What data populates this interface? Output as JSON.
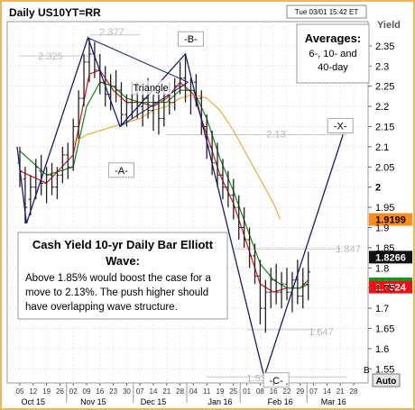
{
  "chart_data": {
    "type": "candlestick",
    "title": "Daily US10YT=RR",
    "timestamp": "Tue 03/01 15:42 ET",
    "ylabel": "Yield",
    "ylim": [
      1.515,
      2.41
    ],
    "yticks": [
      2.35,
      2.3,
      2.25,
      2.2,
      2.15,
      2.1,
      2.05,
      2,
      1.95,
      1.9,
      1.85,
      1.8,
      1.75,
      1.7,
      1.65,
      1.6,
      1.55
    ],
    "ytick_labels": [
      "2.35",
      "2.3",
      "2.25",
      "2.2",
      "2.15",
      "2.1",
      "2.05",
      "2",
      "1.95",
      "1.9",
      "1.85",
      "1.8",
      "1.75",
      "1.7",
      "1.65",
      "1.6",
      "1.55"
    ],
    "x_tick_labels": [
      "05",
      "12",
      "19",
      "26",
      "02",
      "09",
      "16",
      "23",
      "30",
      "07",
      "14",
      "21",
      "28",
      "04",
      "11",
      "19",
      "25",
      "01",
      "08",
      "16",
      "22",
      "29",
      "07",
      "14",
      "21",
      "28"
    ],
    "month_labels": [
      {
        "label": "Oct 15",
        "index": 1
      },
      {
        "label": "Nov 15",
        "index": 5.5
      },
      {
        "label": "Dec 15",
        "index": 10
      },
      {
        "label": "Jan 16",
        "index": 15
      },
      {
        "label": "Feb 16",
        "index": 19.5
      },
      {
        "label": "Mar 16",
        "index": 23.5
      }
    ],
    "candles": [
      {
        "x": 0,
        "o": 2.06,
        "h": 2.1,
        "l": 2.0,
        "c": 2.04
      },
      {
        "x": 0.4,
        "o": 2.02,
        "h": 2.05,
        "l": 1.91,
        "c": 1.95
      },
      {
        "x": 0.8,
        "o": 1.97,
        "h": 2.03,
        "l": 1.93,
        "c": 2.0
      },
      {
        "x": 1.2,
        "o": 2.0,
        "h": 2.07,
        "l": 1.97,
        "c": 2.05
      },
      {
        "x": 1.6,
        "o": 2.04,
        "h": 2.08,
        "l": 1.98,
        "c": 2.01
      },
      {
        "x": 2.0,
        "o": 2.01,
        "h": 2.05,
        "l": 1.96,
        "c": 2.03
      },
      {
        "x": 2.4,
        "o": 2.03,
        "h": 2.06,
        "l": 1.98,
        "c": 2.0
      },
      {
        "x": 2.8,
        "o": 2.0,
        "h": 2.05,
        "l": 1.97,
        "c": 2.03
      },
      {
        "x": 3.2,
        "o": 2.03,
        "h": 2.1,
        "l": 2.01,
        "c": 2.08
      },
      {
        "x": 3.6,
        "o": 2.08,
        "h": 2.11,
        "l": 2.02,
        "c": 2.05
      },
      {
        "x": 4.0,
        "o": 2.05,
        "h": 2.17,
        "l": 2.04,
        "c": 2.15
      },
      {
        "x": 4.4,
        "o": 2.15,
        "h": 2.24,
        "l": 2.12,
        "c": 2.22
      },
      {
        "x": 4.8,
        "o": 2.22,
        "h": 2.33,
        "l": 2.2,
        "c": 2.31
      },
      {
        "x": 5.2,
        "o": 2.31,
        "h": 2.37,
        "l": 2.26,
        "c": 2.33
      },
      {
        "x": 5.6,
        "o": 2.33,
        "h": 2.36,
        "l": 2.27,
        "c": 2.29
      },
      {
        "x": 6.0,
        "o": 2.29,
        "h": 2.33,
        "l": 2.23,
        "c": 2.26
      },
      {
        "x": 6.4,
        "o": 2.26,
        "h": 2.3,
        "l": 2.2,
        "c": 2.23
      },
      {
        "x": 6.8,
        "o": 2.23,
        "h": 2.28,
        "l": 2.19,
        "c": 2.25
      },
      {
        "x": 7.2,
        "o": 2.25,
        "h": 2.29,
        "l": 2.21,
        "c": 2.24
      },
      {
        "x": 7.6,
        "o": 2.24,
        "h": 2.26,
        "l": 2.15,
        "c": 2.18
      },
      {
        "x": 8.0,
        "o": 2.18,
        "h": 2.23,
        "l": 2.15,
        "c": 2.21
      },
      {
        "x": 8.4,
        "o": 2.21,
        "h": 2.26,
        "l": 2.17,
        "c": 2.23
      },
      {
        "x": 8.8,
        "o": 2.23,
        "h": 2.26,
        "l": 2.17,
        "c": 2.2
      },
      {
        "x": 9.2,
        "o": 2.2,
        "h": 2.24,
        "l": 2.15,
        "c": 2.22
      },
      {
        "x": 9.6,
        "o": 2.22,
        "h": 2.27,
        "l": 2.17,
        "c": 2.19
      },
      {
        "x": 10.0,
        "o": 2.19,
        "h": 2.23,
        "l": 2.14,
        "c": 2.21
      },
      {
        "x": 10.4,
        "o": 2.21,
        "h": 2.24,
        "l": 2.13,
        "c": 2.17
      },
      {
        "x": 10.8,
        "o": 2.17,
        "h": 2.25,
        "l": 2.15,
        "c": 2.23
      },
      {
        "x": 11.2,
        "o": 2.23,
        "h": 2.26,
        "l": 2.18,
        "c": 2.21
      },
      {
        "x": 11.6,
        "o": 2.21,
        "h": 2.27,
        "l": 2.19,
        "c": 2.25
      },
      {
        "x": 12.0,
        "o": 2.25,
        "h": 2.31,
        "l": 2.23,
        "c": 2.27
      },
      {
        "x": 12.4,
        "o": 2.27,
        "h": 2.33,
        "l": 2.21,
        "c": 2.24
      },
      {
        "x": 12.8,
        "o": 2.24,
        "h": 2.27,
        "l": 2.18,
        "c": 2.26
      },
      {
        "x": 13.2,
        "o": 2.26,
        "h": 2.28,
        "l": 2.2,
        "c": 2.22
      },
      {
        "x": 13.6,
        "o": 2.22,
        "h": 2.24,
        "l": 2.13,
        "c": 2.15
      },
      {
        "x": 14.0,
        "o": 2.15,
        "h": 2.18,
        "l": 2.07,
        "c": 2.1
      },
      {
        "x": 14.4,
        "o": 2.1,
        "h": 2.14,
        "l": 2.03,
        "c": 2.06
      },
      {
        "x": 14.8,
        "o": 2.06,
        "h": 2.11,
        "l": 2.0,
        "c": 2.03
      },
      {
        "x": 15.2,
        "o": 2.03,
        "h": 2.07,
        "l": 1.97,
        "c": 2.0
      },
      {
        "x": 15.6,
        "o": 2.0,
        "h": 2.04,
        "l": 1.95,
        "c": 1.98
      },
      {
        "x": 16.0,
        "o": 1.98,
        "h": 2.02,
        "l": 1.92,
        "c": 1.95
      },
      {
        "x": 16.4,
        "o": 1.95,
        "h": 1.98,
        "l": 1.87,
        "c": 1.9
      },
      {
        "x": 16.8,
        "o": 1.9,
        "h": 1.95,
        "l": 1.85,
        "c": 1.87
      },
      {
        "x": 17.2,
        "o": 1.87,
        "h": 1.9,
        "l": 1.8,
        "c": 1.83
      },
      {
        "x": 17.6,
        "o": 1.83,
        "h": 1.86,
        "l": 1.76,
        "c": 1.78
      },
      {
        "x": 18.0,
        "o": 1.78,
        "h": 1.82,
        "l": 1.66,
        "c": 1.7
      },
      {
        "x": 18.4,
        "o": 1.7,
        "h": 1.77,
        "l": 1.64,
        "c": 1.74
      },
      {
        "x": 18.8,
        "o": 1.74,
        "h": 1.8,
        "l": 1.7,
        "c": 1.77
      },
      {
        "x": 19.2,
        "o": 1.77,
        "h": 1.81,
        "l": 1.71,
        "c": 1.74
      },
      {
        "x": 19.6,
        "o": 1.74,
        "h": 1.79,
        "l": 1.7,
        "c": 1.76
      },
      {
        "x": 20.0,
        "o": 1.76,
        "h": 1.8,
        "l": 1.72,
        "c": 1.74
      },
      {
        "x": 20.4,
        "o": 1.74,
        "h": 1.79,
        "l": 1.69,
        "c": 1.77
      },
      {
        "x": 20.8,
        "o": 1.77,
        "h": 1.82,
        "l": 1.71,
        "c": 1.73
      },
      {
        "x": 21.2,
        "o": 1.73,
        "h": 1.8,
        "l": 1.7,
        "c": 1.76
      },
      {
        "x": 21.6,
        "o": 1.76,
        "h": 1.84,
        "l": 1.72,
        "c": 1.79
      }
    ],
    "series": [
      {
        "name": "6-day",
        "color": "#dd1111",
        "points": [
          [
            0,
            2.04
          ],
          [
            2,
            2.01
          ],
          [
            4,
            2.08
          ],
          [
            5.2,
            2.28
          ],
          [
            6,
            2.29
          ],
          [
            7,
            2.24
          ],
          [
            8,
            2.21
          ],
          [
            9,
            2.21
          ],
          [
            10,
            2.2
          ],
          [
            11,
            2.22
          ],
          [
            12,
            2.26
          ],
          [
            13,
            2.23
          ],
          [
            14,
            2.13
          ],
          [
            15,
            2.03
          ],
          [
            16,
            1.96
          ],
          [
            17,
            1.86
          ],
          [
            18,
            1.76
          ],
          [
            19,
            1.74
          ],
          [
            20,
            1.75
          ],
          [
            21,
            1.75
          ],
          [
            21.6,
            1.77
          ]
        ]
      },
      {
        "name": "10-day",
        "color": "#118811",
        "points": [
          [
            0,
            2.09
          ],
          [
            2,
            2.03
          ],
          [
            4,
            2.05
          ],
          [
            5,
            2.2
          ],
          [
            6,
            2.26
          ],
          [
            7,
            2.25
          ],
          [
            8,
            2.22
          ],
          [
            9,
            2.21
          ],
          [
            10,
            2.21
          ],
          [
            11,
            2.21
          ],
          [
            12,
            2.24
          ],
          [
            13,
            2.24
          ],
          [
            14,
            2.17
          ],
          [
            15,
            2.07
          ],
          [
            16,
            1.99
          ],
          [
            17,
            1.9
          ],
          [
            18,
            1.81
          ],
          [
            19,
            1.77
          ],
          [
            20,
            1.75
          ],
          [
            21,
            1.75
          ],
          [
            21.6,
            1.76
          ]
        ]
      },
      {
        "name": "40-day",
        "color": "#e8a020",
        "points": [
          [
            4,
            2.11
          ],
          [
            5,
            2.13
          ],
          [
            6,
            2.14
          ],
          [
            7,
            2.15
          ],
          [
            8,
            2.16
          ],
          [
            9,
            2.17
          ],
          [
            10,
            2.19
          ],
          [
            11,
            2.2
          ],
          [
            12,
            2.22
          ],
          [
            13,
            2.23
          ],
          [
            14,
            2.22
          ],
          [
            15,
            2.19
          ],
          [
            16,
            2.14
          ],
          [
            17,
            2.08
          ],
          [
            18,
            2.02
          ],
          [
            19,
            1.96
          ],
          [
            19.5,
            1.92
          ]
        ]
      }
    ],
    "wave_points": [
      {
        "x": -0.2,
        "y": 2.1
      },
      {
        "x": 0.5,
        "y": 1.91
      },
      {
        "x": 5.1,
        "y": 2.37
      },
      {
        "x": 7.5,
        "y": 2.15
      },
      {
        "x": 12.4,
        "y": 2.33
      },
      {
        "x": 18.3,
        "y": 1.53
      },
      {
        "x": 24.2,
        "y": 2.13
      }
    ],
    "triangle_lines": [
      [
        [
          5.1,
          2.37
        ],
        [
          12.6,
          2.26
        ]
      ],
      [
        [
          7.5,
          2.15
        ],
        [
          12.6,
          2.26
        ]
      ]
    ],
    "level_lines": [
      {
        "value": 2.325,
        "label": "2.325",
        "x0": 0,
        "x1": 6
      },
      {
        "value": 2.377,
        "label": "2.377",
        "x0": 5.2,
        "x1": 9
      },
      {
        "value": 2.13,
        "label": "2.13",
        "x0": 11,
        "x1": 24.5
      },
      {
        "value": 1.847,
        "label": "1.847",
        "x0": 16,
        "x1": 24
      },
      {
        "value": 1.647,
        "label": "1.647",
        "x0": 17,
        "x1": 22.5
      },
      {
        "value": 1.53,
        "label": "1.53",
        "x0": 14,
        "x1": 24.5
      }
    ],
    "wave_labels": [
      {
        "label": "-A-",
        "x": 7.6,
        "y": 2.04
      },
      {
        "label": "-B-",
        "x": 12.8,
        "y": 2.365
      },
      {
        "label": "-C-",
        "x": 19.2,
        "y": 1.52
      },
      {
        "label": "-X-",
        "x": 24.0,
        "y": 2.15
      },
      {
        "label": "Triangle",
        "x": 9.8,
        "y": 2.245
      }
    ],
    "price_labels": [
      {
        "value": "1.9199",
        "color": "#ff8c1a",
        "y": 1.9199
      },
      {
        "value": "1.8266",
        "color": "#111111",
        "y": 1.8266
      },
      {
        "value": "1.7606",
        "color": "#11991a",
        "y": 1.7606
      },
      {
        "value": "1.7524",
        "color": "#ee1111",
        "y": 1.7524
      }
    ],
    "averages_box": {
      "head": "Averages:",
      "lines": [
        "6-, 10- and",
        "40-day"
      ]
    },
    "commentary_box": {
      "head": "Cash Yield 10-yr Daily Bar Elliott",
      "head2": "Wave:",
      "lines": [
        "Above 1.85% would boost the case for a",
        "move to 2.13%. The push higher should",
        "have overlapping wave structure."
      ]
    },
    "corner_button": "Auto",
    "corner_label": "B",
    "grid": true
  }
}
